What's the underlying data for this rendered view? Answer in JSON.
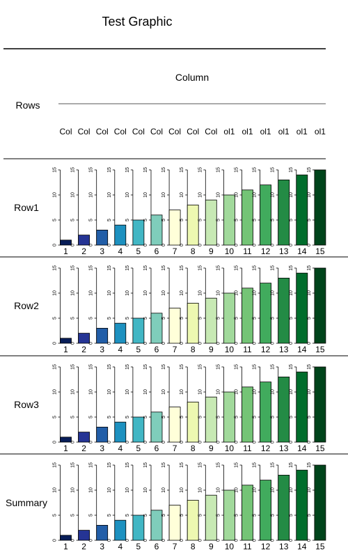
{
  "title": "Test Graphic",
  "column_header": "Column",
  "rows_header": "Rows",
  "column_labels": [
    "Col",
    "Col",
    "Col",
    "Col",
    "Col",
    "Col",
    "Col",
    "Col",
    "Col",
    "ol1",
    "ol1",
    "ol1",
    "ol1",
    "ol1",
    "ol1"
  ],
  "colors": [
    "#081d58",
    "#253494",
    "#225ea8",
    "#1d91c0",
    "#41b6c4",
    "#7fcdbb",
    "#ffffd9",
    "#edf8b1",
    "#c7e9b4",
    "#a1d99b",
    "#74c476",
    "#41ab5d",
    "#238b45",
    "#006d2c",
    "#00441b"
  ],
  "chart_data": {
    "type": "bar",
    "layout": "grid of small-multiple bar charts, one per row",
    "categories": [
      "1",
      "2",
      "3",
      "4",
      "5",
      "6",
      "7",
      "8",
      "9",
      "10",
      "11",
      "12",
      "13",
      "14",
      "15"
    ],
    "ylim": [
      0,
      15
    ],
    "yticks": [
      "0",
      "5",
      "10",
      "15"
    ],
    "rows": [
      {
        "label": "Row1",
        "values": [
          1,
          2,
          3,
          4,
          5,
          6,
          7,
          8,
          9,
          10,
          11,
          12,
          13,
          14,
          15
        ]
      },
      {
        "label": "Row2",
        "values": [
          1,
          2,
          3,
          4,
          5,
          6,
          7,
          8,
          9,
          10,
          11,
          12,
          13,
          14,
          15
        ]
      },
      {
        "label": "Row3",
        "values": [
          1,
          2,
          3,
          4,
          5,
          6,
          7,
          8,
          9,
          10,
          11,
          12,
          13,
          14,
          15
        ]
      },
      {
        "label": "Summary",
        "values": [
          1,
          2,
          3,
          4,
          5,
          6,
          7,
          8,
          9,
          10,
          11,
          12,
          13,
          14,
          15
        ]
      }
    ]
  }
}
